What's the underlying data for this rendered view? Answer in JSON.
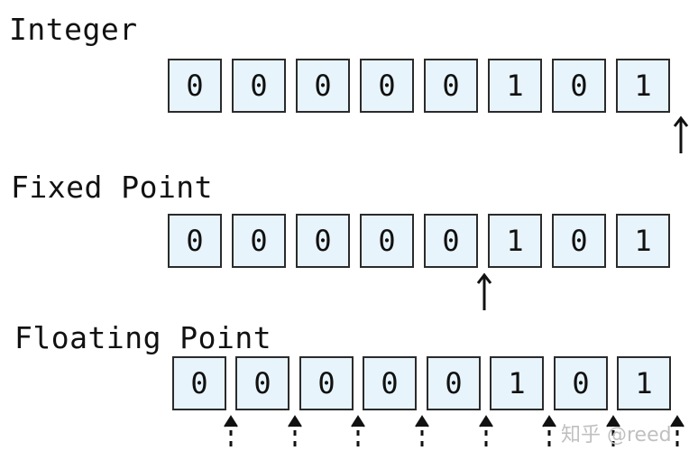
{
  "rows": [
    {
      "title": "Integer",
      "bits": [
        "0",
        "0",
        "0",
        "0",
        "0",
        "1",
        "0",
        "1"
      ],
      "point_after_bit": 8,
      "point_style": "solid"
    },
    {
      "title": "Fixed Point",
      "bits": [
        "0",
        "0",
        "0",
        "0",
        "0",
        "1",
        "0",
        "1"
      ],
      "point_after_bit": 5,
      "point_style": "solid"
    },
    {
      "title": "Floating Point",
      "bits": [
        "0",
        "0",
        "0",
        "0",
        "0",
        "1",
        "0",
        "1"
      ],
      "point_after_bits": [
        1,
        2,
        3,
        4,
        5,
        6,
        7,
        8
      ],
      "point_style": "dashed"
    }
  ],
  "watermark": "知乎 @reed"
}
